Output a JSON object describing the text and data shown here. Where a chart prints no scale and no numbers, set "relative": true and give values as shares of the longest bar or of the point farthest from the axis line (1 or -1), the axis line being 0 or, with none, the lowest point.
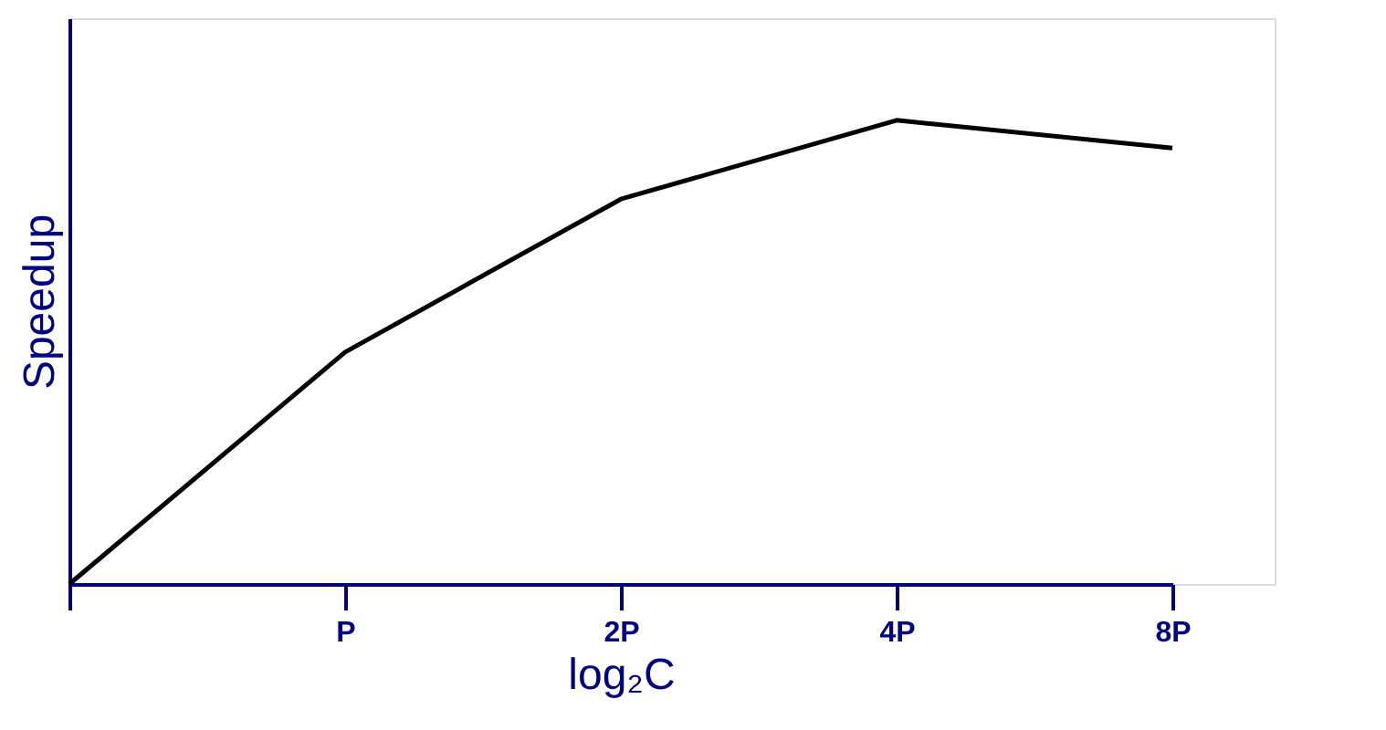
{
  "chart_data": {
    "type": "line",
    "relative": true,
    "xlabel": "log₂C",
    "ylabel": "Speedup",
    "categories": [
      null,
      "P",
      "2P",
      "4P",
      "8P"
    ],
    "series": [
      {
        "color": "#000000",
        "values": [
          0,
          0.5,
          0.83,
          1,
          0.94
        ]
      }
    ],
    "grid": false,
    "marker": "none",
    "line_style": "solid"
  }
}
